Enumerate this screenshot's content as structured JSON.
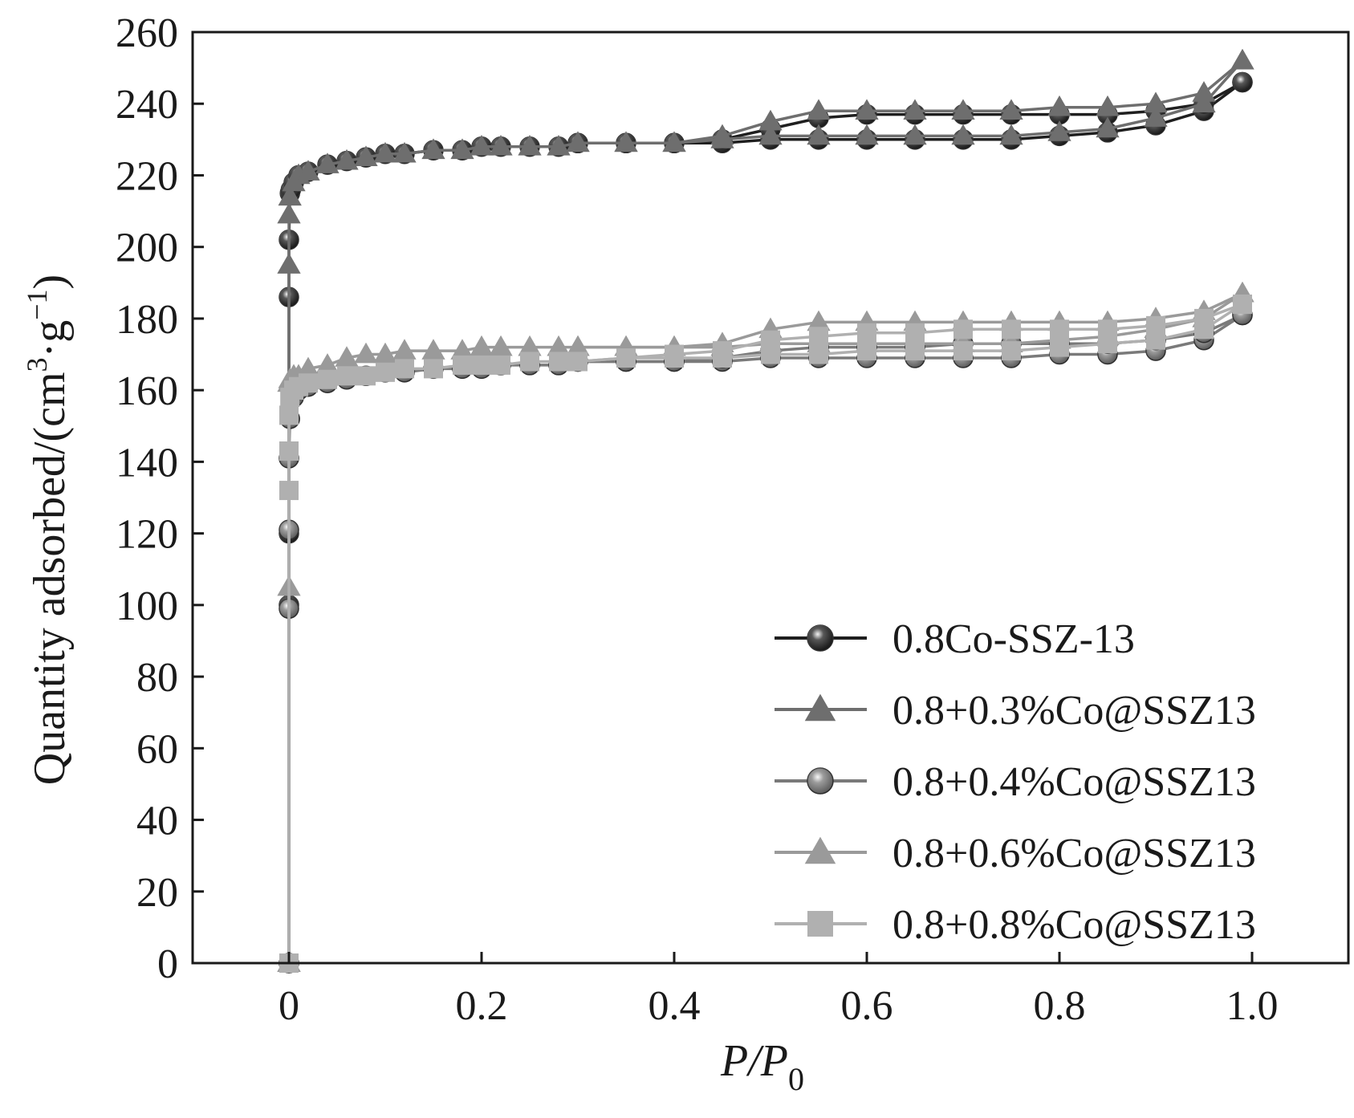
{
  "chart_data": {
    "type": "line",
    "xlabel": {
      "main": "P/P",
      "sub": "0"
    },
    "ylabel": {
      "pre": "Quantity adsorbed/(cm",
      "sup1": "3",
      "mid": "·g",
      "sup2": "−1",
      "post": ")"
    },
    "xlim": [
      -0.1,
      1.1
    ],
    "ylim": [
      0,
      260
    ],
    "x_ticks": [
      0,
      0.2,
      0.4,
      0.6,
      0.8,
      1.0
    ],
    "x_tick_labels": [
      "0",
      "0.2",
      "0.4",
      "0.6",
      "0.8",
      "1.0"
    ],
    "y_ticks": [
      0,
      20,
      40,
      60,
      80,
      100,
      120,
      140,
      160,
      180,
      200,
      220,
      240,
      260
    ],
    "y_tick_labels": [
      "0",
      "20",
      "40",
      "60",
      "80",
      "100",
      "120",
      "140",
      "160",
      "180",
      "200",
      "220",
      "240",
      "260"
    ],
    "legend_position": "bottom-right",
    "series": [
      {
        "name": "0.8Co-SSZ-13",
        "color": "#1f1f1f",
        "marker": "circle",
        "adsorption": {
          "x": [
            0,
            0,
            0,
            0,
            0,
            0.001,
            0.002,
            0.005,
            0.01,
            0.02,
            0.04,
            0.06,
            0.08,
            0.1,
            0.12,
            0.15,
            0.18,
            0.2,
            0.22,
            0.25,
            0.28,
            0.3,
            0.35,
            0.4,
            0.45,
            0.5,
            0.55,
            0.6,
            0.65,
            0.7,
            0.75,
            0.8,
            0.85,
            0.9,
            0.95,
            0.99
          ],
          "y": [
            0,
            100,
            120,
            186,
            202,
            215,
            216,
            218,
            220,
            221,
            223,
            224,
            225,
            226,
            226,
            227,
            227,
            228,
            228,
            228,
            228,
            229,
            229,
            229,
            229,
            230,
            230,
            230,
            230,
            230,
            230,
            231,
            232,
            234,
            238,
            246
          ]
        },
        "desorption": {
          "x": [
            0.99,
            0.95,
            0.9,
            0.85,
            0.8,
            0.75,
            0.7,
            0.65,
            0.6,
            0.55,
            0.5,
            0.45,
            0.4,
            0.35,
            0.3
          ],
          "y": [
            246,
            240,
            238,
            237,
            237,
            237,
            237,
            237,
            237,
            236,
            233,
            230,
            229,
            229,
            229
          ]
        }
      },
      {
        "name": "0.8+0.3%Co@SSZ13",
        "color": "#6e6e6e",
        "marker": "triangle",
        "adsorption": {
          "x": [
            0,
            0,
            0,
            0.001,
            0.005,
            0.01,
            0.02,
            0.04,
            0.06,
            0.08,
            0.1,
            0.12,
            0.15,
            0.18,
            0.2,
            0.22,
            0.25,
            0.28,
            0.3,
            0.35,
            0.4,
            0.45,
            0.5,
            0.55,
            0.6,
            0.65,
            0.7,
            0.75,
            0.8,
            0.85,
            0.9,
            0.95,
            0.99
          ],
          "y": [
            0,
            195,
            209,
            214,
            218,
            220,
            221,
            223,
            224,
            225,
            226,
            226,
            227,
            227,
            228,
            228,
            228,
            228,
            229,
            229,
            229,
            230,
            231,
            231,
            231,
            231,
            231,
            231,
            232,
            233,
            236,
            240,
            252
          ]
        },
        "desorption": {
          "x": [
            0.99,
            0.95,
            0.9,
            0.85,
            0.8,
            0.75,
            0.7,
            0.65,
            0.6,
            0.55,
            0.5,
            0.45,
            0.4,
            0.35,
            0.3
          ],
          "y": [
            252,
            243,
            240,
            239,
            239,
            238,
            238,
            238,
            238,
            238,
            235,
            231,
            229,
            229,
            229
          ]
        }
      },
      {
        "name": "0.8+0.4%Co@SSZ13",
        "color": "#7a7a7a",
        "marker": "circle",
        "adsorption": {
          "x": [
            0,
            0,
            0,
            0,
            0.001,
            0.005,
            0.01,
            0.02,
            0.04,
            0.06,
            0.08,
            0.1,
            0.12,
            0.15,
            0.18,
            0.2,
            0.22,
            0.25,
            0.28,
            0.3,
            0.35,
            0.4,
            0.45,
            0.5,
            0.55,
            0.6,
            0.65,
            0.7,
            0.75,
            0.8,
            0.85,
            0.9,
            0.95,
            0.99
          ],
          "y": [
            0,
            99,
            121,
            141,
            152,
            158,
            160,
            161,
            162,
            163,
            164,
            165,
            165,
            166,
            166,
            166,
            167,
            167,
            167,
            168,
            168,
            168,
            168,
            169,
            169,
            169,
            169,
            169,
            169,
            170,
            170,
            171,
            174,
            181
          ]
        },
        "desorption": {
          "x": [
            0.99,
            0.95,
            0.9,
            0.85,
            0.8,
            0.75,
            0.7,
            0.65,
            0.6,
            0.55,
            0.5,
            0.45,
            0.4,
            0.35,
            0.3
          ],
          "y": [
            181,
            176,
            174,
            173,
            173,
            173,
            173,
            172,
            172,
            172,
            171,
            169,
            168,
            168,
            168
          ]
        }
      },
      {
        "name": "0.8+0.6%Co@SSZ13",
        "color": "#9a9a9a",
        "marker": "triangle",
        "adsorption": {
          "x": [
            0,
            0,
            0,
            0.001,
            0.005,
            0.01,
            0.02,
            0.04,
            0.06,
            0.08,
            0.1,
            0.12,
            0.15,
            0.18,
            0.2,
            0.22,
            0.25,
            0.28,
            0.3,
            0.35,
            0.4,
            0.45,
            0.5,
            0.55,
            0.6,
            0.65,
            0.7,
            0.75,
            0.8,
            0.85,
            0.9,
            0.95,
            0.99
          ],
          "y": [
            0,
            105,
            162,
            163,
            164,
            164,
            166,
            167,
            169,
            170,
            170,
            171,
            171,
            171,
            172,
            172,
            172,
            172,
            172,
            172,
            172,
            172,
            173,
            173,
            173,
            173,
            173,
            173,
            174,
            175,
            177,
            180,
            187
          ]
        },
        "desorption": {
          "x": [
            0.99,
            0.95,
            0.9,
            0.85,
            0.8,
            0.75,
            0.7,
            0.65,
            0.6,
            0.55,
            0.5,
            0.45,
            0.4,
            0.35,
            0.3
          ],
          "y": [
            187,
            182,
            180,
            179,
            179,
            179,
            179,
            179,
            179,
            179,
            177,
            173,
            172,
            172,
            172
          ]
        }
      },
      {
        "name": "0.8+0.8%Co@SSZ13",
        "color": "#b0b0b0",
        "marker": "square",
        "adsorption": {
          "x": [
            0,
            0,
            0,
            0,
            0.001,
            0.005,
            0.01,
            0.02,
            0.04,
            0.06,
            0.08,
            0.1,
            0.12,
            0.15,
            0.18,
            0.2,
            0.22,
            0.25,
            0.28,
            0.3,
            0.35,
            0.4,
            0.45,
            0.5,
            0.55,
            0.6,
            0.65,
            0.7,
            0.75,
            0.8,
            0.85,
            0.9,
            0.95,
            0.99
          ],
          "y": [
            0,
            132,
            143,
            153,
            158,
            160,
            161,
            162,
            163,
            164,
            164,
            165,
            166,
            166,
            167,
            167,
            167,
            168,
            168,
            168,
            169,
            169,
            169,
            170,
            170,
            171,
            171,
            171,
            171,
            172,
            173,
            174,
            177,
            184
          ]
        },
        "desorption": {
          "x": [
            0.99,
            0.95,
            0.9,
            0.85,
            0.8,
            0.75,
            0.7,
            0.65,
            0.6,
            0.55,
            0.5,
            0.45,
            0.4,
            0.35,
            0.3
          ],
          "y": [
            184,
            180,
            178,
            177,
            177,
            177,
            177,
            176,
            176,
            175,
            174,
            171,
            170,
            169,
            168
          ]
        }
      }
    ]
  }
}
